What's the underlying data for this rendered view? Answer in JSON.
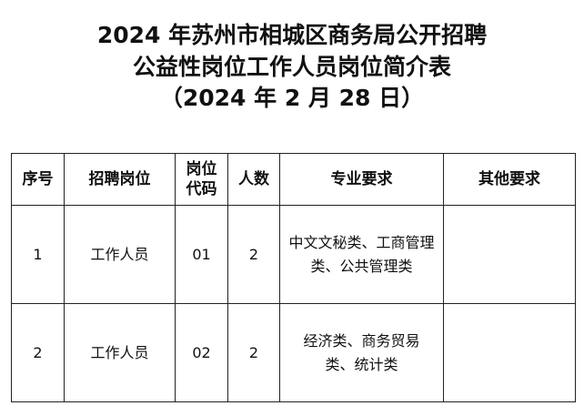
{
  "title": {
    "line1": "2024 年苏州市相城区商务局公开招聘",
    "line2": "公益性岗位工作人员岗位简介表",
    "line3": "（2024 年 2 月 28 日）"
  },
  "table": {
    "headers": [
      "序号",
      "招聘岗位",
      "岗位代码",
      "人数",
      "专业要求",
      "其他要求"
    ],
    "rows": [
      [
        "1",
        "工作人员",
        "01",
        "2",
        "中文文秘类、工商管理类、公共管理类",
        ""
      ],
      [
        "2",
        "工作人员",
        "02",
        "2",
        "经济类、商务贸易类、统计类",
        ""
      ]
    ]
  }
}
